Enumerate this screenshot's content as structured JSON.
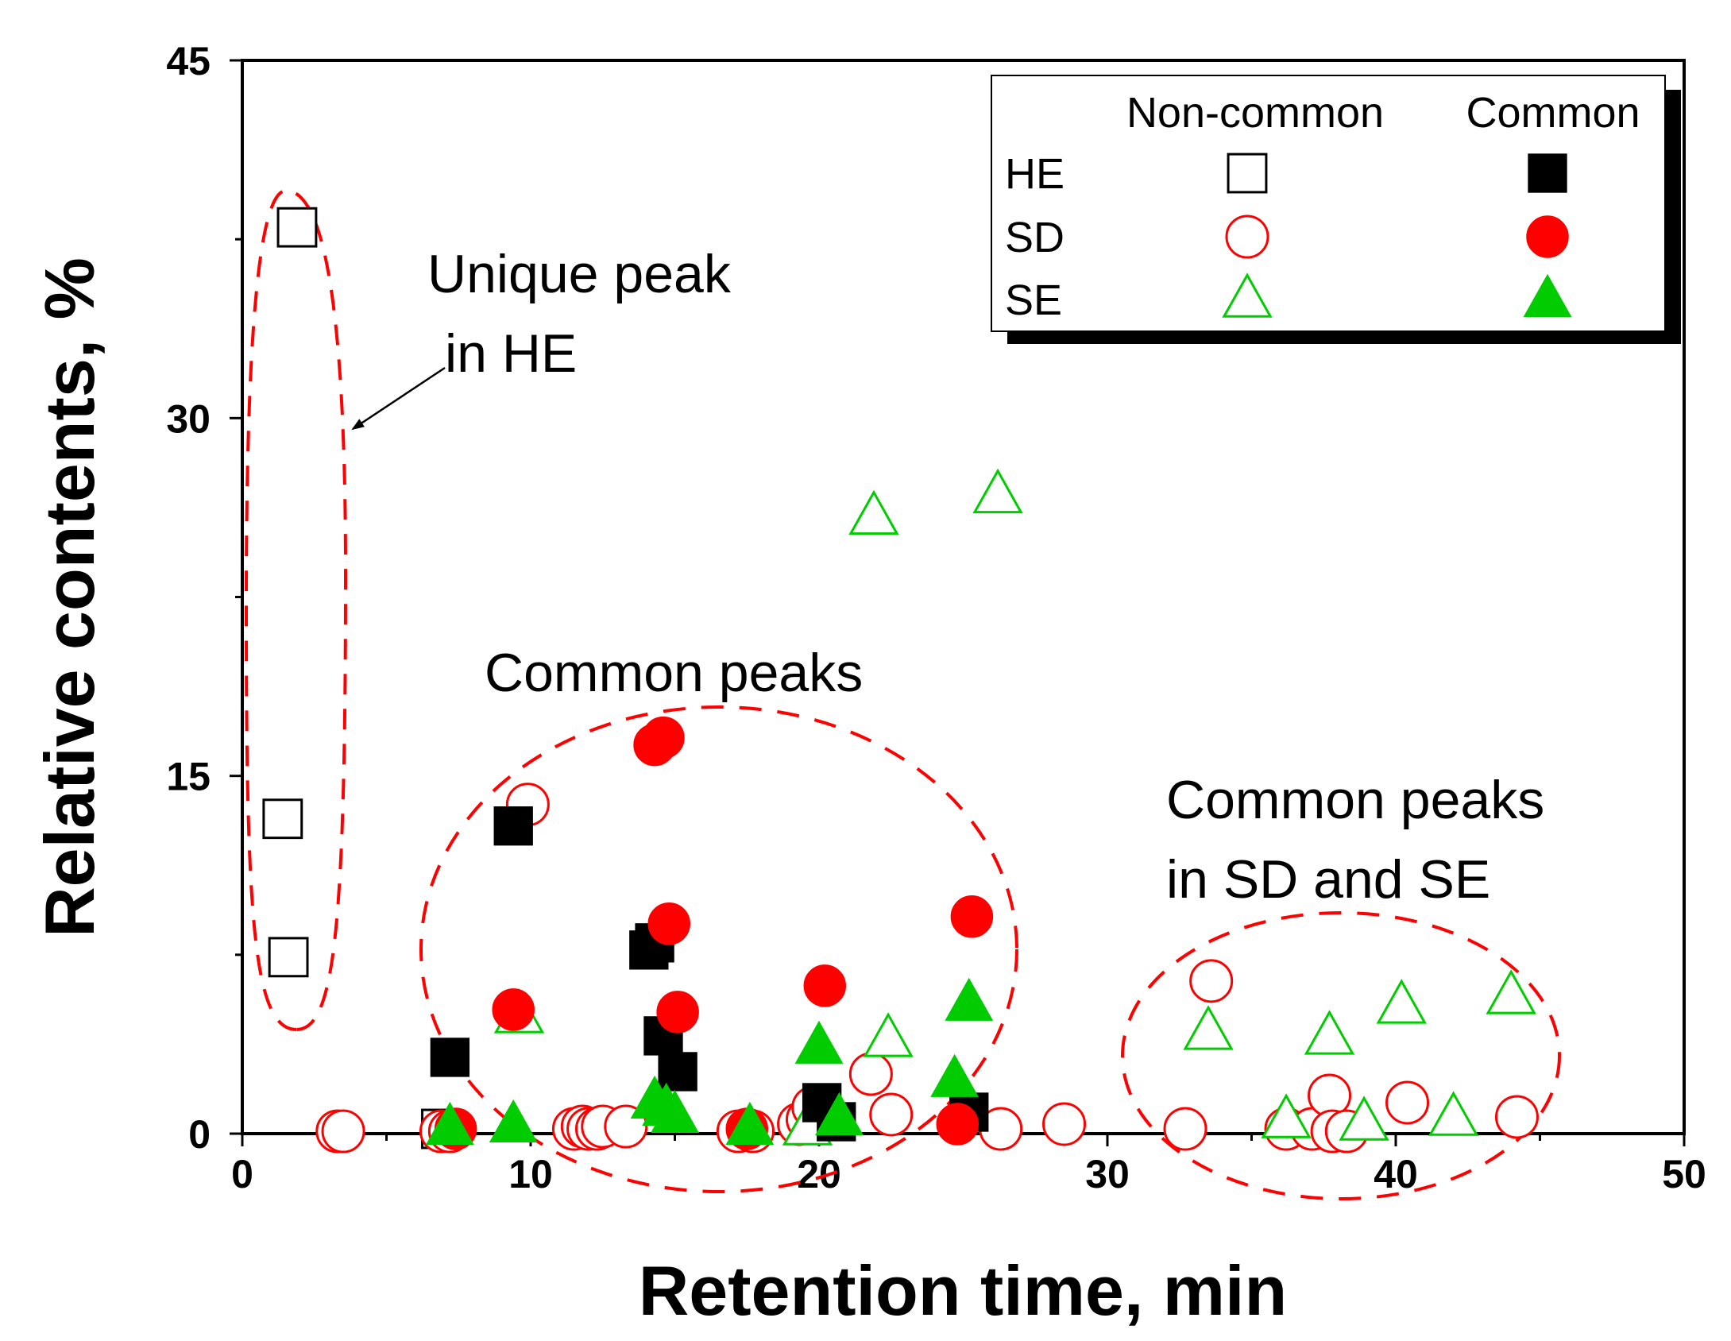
{
  "chart_data": {
    "type": "scatter",
    "title": "",
    "xlabel": "Retention time, min",
    "ylabel": "Relative contents, %",
    "xlim": [
      0,
      50
    ],
    "ylim": [
      0,
      45
    ],
    "xticks": [
      0,
      10,
      20,
      30,
      40,
      50
    ],
    "yticks": [
      0,
      15,
      30,
      45
    ],
    "legend": {
      "placement": "top-right",
      "column_headers": [
        "Non-common",
        "Common"
      ],
      "rows": [
        "HE",
        "SD",
        "SE"
      ]
    },
    "colors": {
      "HE": "#000000",
      "SD": "#ff0000",
      "SE": "#00cc00",
      "annotation": "#ff0000"
    },
    "series": [
      {
        "name": "HE Non-common",
        "group": "HE",
        "marker": "square",
        "filled": false,
        "x": [
          1.9,
          1.4,
          1.6,
          6.9
        ],
        "y": [
          38.0,
          13.2,
          7.4,
          0.2
        ]
      },
      {
        "name": "HE Common",
        "group": "HE",
        "marker": "square",
        "filled": true,
        "x": [
          7.2,
          9.4,
          14.1,
          14.3,
          14.6,
          15.1,
          20.1,
          20.6,
          25.2
        ],
        "y": [
          3.2,
          12.9,
          7.7,
          8.0,
          4.1,
          2.6,
          1.3,
          0.5,
          0.9
        ]
      },
      {
        "name": "SD Non-common",
        "group": "SD",
        "marker": "circle",
        "filled": false,
        "x": [
          3.3,
          3.5,
          6.9,
          7.2,
          9.9,
          11.5,
          11.8,
          12.0,
          12.3,
          12.5,
          13.3,
          17.2,
          17.7,
          19.3,
          19.6,
          19.8,
          21.8,
          22.5,
          26.3,
          28.5,
          32.7,
          33.6,
          36.2,
          37.1,
          37.7,
          37.8,
          38.3,
          40.4,
          44.2
        ],
        "y": [
          0.1,
          0.1,
          0.1,
          0.1,
          13.8,
          0.2,
          0.3,
          0.2,
          0.2,
          0.3,
          0.3,
          0.1,
          0.1,
          0.4,
          0.6,
          1.1,
          2.5,
          0.8,
          0.2,
          0.4,
          0.2,
          6.4,
          0.2,
          0.2,
          1.6,
          0.1,
          0.1,
          1.3,
          0.7
        ]
      },
      {
        "name": "SD Common",
        "group": "SD",
        "marker": "circle",
        "filled": true,
        "x": [
          7.4,
          9.4,
          14.3,
          14.6,
          14.8,
          15.1,
          17.5,
          20.2,
          24.8,
          25.3
        ],
        "y": [
          0.2,
          5.2,
          16.3,
          16.6,
          8.8,
          5.1,
          0.2,
          6.2,
          0.4,
          9.1
        ]
      },
      {
        "name": "SE Non-common",
        "group": "SE",
        "marker": "triangle",
        "filled": false,
        "x": [
          9.6,
          19.6,
          22.4,
          21.9,
          26.2,
          33.5,
          36.2,
          37.7,
          38.9,
          40.2,
          42.0,
          44.0
        ],
        "y": [
          5.0,
          0.3,
          4.0,
          25.9,
          26.8,
          4.3,
          0.6,
          4.1,
          0.5,
          5.4,
          0.7,
          5.8
        ]
      },
      {
        "name": "SE Common",
        "group": "SE",
        "marker": "triangle",
        "filled": true,
        "x": [
          7.2,
          9.4,
          14.3,
          14.7,
          15.0,
          17.6,
          20.0,
          20.7,
          24.7,
          25.2
        ],
        "y": [
          0.3,
          0.4,
          1.4,
          1.1,
          0.8,
          0.3,
          3.7,
          0.7,
          2.3,
          5.5
        ]
      }
    ],
    "annotations": [
      {
        "lines": [
          "Unique peak",
          "in HE"
        ],
        "shape": "dashed ellipse with arrow"
      },
      {
        "lines": [
          "Common peaks"
        ],
        "shape": "dashed ellipse"
      },
      {
        "lines": [
          "Common peaks",
          "in SD and SE"
        ],
        "shape": "dashed ellipse"
      }
    ]
  }
}
